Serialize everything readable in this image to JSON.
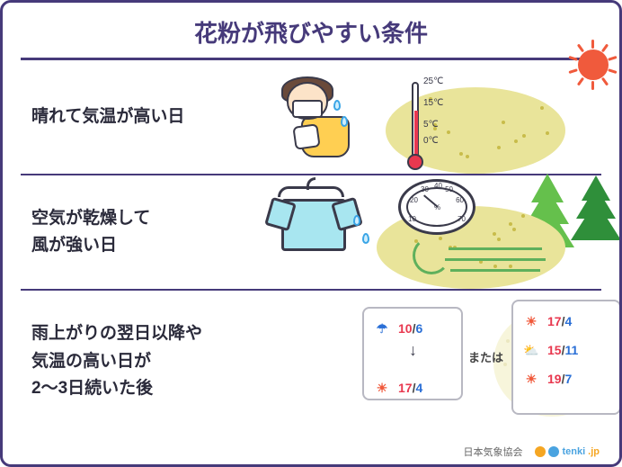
{
  "colors": {
    "accent": "#463a7a",
    "border": "#463a7a",
    "text": "#2a2a3a",
    "tree_dark": "#2f8f3a",
    "tree_light": "#65c04c",
    "pollen": "#e9e49a",
    "pollen_dot": "#c8bc4a",
    "sun": "#f05a3c",
    "hi": "#e8384f",
    "lo": "#2a6fd6",
    "wind": "#5fb05c"
  },
  "title": "花粉が飛びやすい条件",
  "rows": [
    {
      "label": "晴れて気温が高い日"
    },
    {
      "label": "空気が乾燥して\n風が強い日"
    },
    {
      "label": "雨上がりの翌日以降や\n気温の高い日が\n2〜3日続いた後"
    }
  ],
  "thermometer": {
    "ticks": [
      "25℃",
      "15℃",
      "5℃",
      "0℃"
    ],
    "fill_pct": 62
  },
  "hygrometer": {
    "ticks": [
      "10",
      "20",
      "30",
      "40",
      "50",
      "60",
      "70"
    ],
    "unit": "%"
  },
  "forecast": {
    "or_label": "または",
    "box1": [
      {
        "icon": "umbrella",
        "hi": "10",
        "lo": "6"
      },
      {
        "icon": "sun",
        "hi": "17",
        "lo": "4"
      }
    ],
    "box2": [
      {
        "icon": "sun",
        "hi": "17",
        "lo": "4"
      },
      {
        "icon": "suncloud",
        "hi": "15",
        "lo": "11"
      },
      {
        "icon": "sun",
        "hi": "19",
        "lo": "7"
      }
    ]
  },
  "footer": {
    "org": "日本気象協会",
    "brand_a": "tenki",
    "brand_b": ".jp"
  },
  "icon_map": {
    "umbrella": "☂",
    "sun": "☀",
    "suncloud": "⛅"
  }
}
